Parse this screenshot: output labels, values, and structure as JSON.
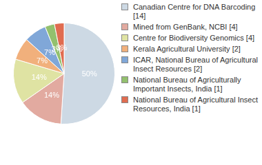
{
  "chart_data": {
    "type": "pie",
    "categories": [
      "Canadian Centre for DNA Barcoding [14]",
      "Mined from GenBank, NCBI [4]",
      "Centre for Biodiversity Genomics [4]",
      "Kerala Agricultural University [2]",
      "ICAR, National Bureau of Agricultural Insect Resources [2]",
      "National Bureau of Agriculturally Important Insects, India [1]",
      "National Bureau of Agricultural Insect Resources, India [1]"
    ],
    "values": [
      50,
      14,
      14,
      7,
      7,
      3,
      3
    ],
    "value_labels": [
      "50%",
      "14%",
      "14%",
      "7%",
      "7%",
      "3%",
      "3%"
    ],
    "colors": [
      "#cdd9e4",
      "#e2aaa0",
      "#dfe3a3",
      "#f1b07c",
      "#80a7d8",
      "#93c06e",
      "#e06c50"
    ],
    "legend": "right",
    "data_labels": true
  }
}
